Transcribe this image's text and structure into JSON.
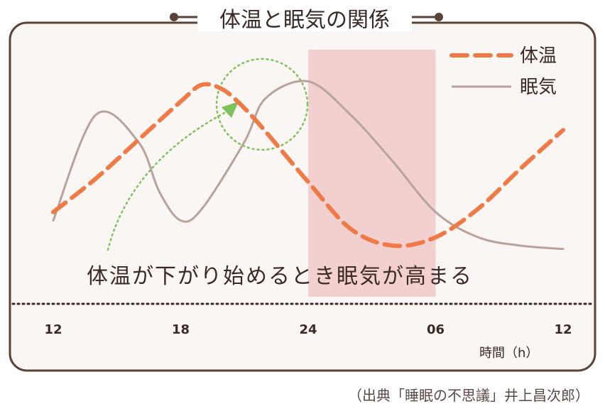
{
  "chart_data": {
    "type": "line",
    "title": "体温と眠気の関係",
    "x": [
      "12",
      "18",
      "24",
      "06",
      "12"
    ],
    "xlabel": "時間（h）",
    "ylabel": "",
    "series": [
      {
        "name": "体温",
        "style": "dashed",
        "color": "#f07a46",
        "points": [
          [
            12,
            0.2
          ],
          [
            14,
            0.4
          ],
          [
            16,
            0.63
          ],
          [
            18,
            0.86
          ],
          [
            19,
            0.96
          ],
          [
            20,
            0.93
          ],
          [
            21,
            0.82
          ],
          [
            22,
            0.68
          ],
          [
            24,
            0.38
          ],
          [
            26,
            0.1
          ],
          [
            28,
            0.0
          ],
          [
            30,
            0.05
          ],
          [
            32,
            0.22
          ],
          [
            34,
            0.46
          ],
          [
            36,
            0.69
          ]
        ]
      },
      {
        "name": "眠気",
        "style": "solid",
        "color": "#b8a39c",
        "points": [
          [
            12,
            0.15
          ],
          [
            14,
            0.78
          ],
          [
            16,
            0.62
          ],
          [
            17,
            0.32
          ],
          [
            18,
            0.15
          ],
          [
            19,
            0.22
          ],
          [
            21,
            0.62
          ],
          [
            22,
            0.88
          ],
          [
            24,
            0.98
          ],
          [
            26,
            0.78
          ],
          [
            28,
            0.5
          ],
          [
            30,
            0.2
          ],
          [
            32,
            0.05
          ],
          [
            34,
            0.0
          ],
          [
            36,
            -0.02
          ]
        ]
      }
    ],
    "highlight_region": {
      "from": 24,
      "to": 30,
      "color": "#f2d0cf"
    },
    "annotation": "体温が下がり始めるとき眠気が高まる",
    "legend": {
      "position": "top-right"
    }
  },
  "source_note": "（出典「睡眠の不思議」井上昌次郎）",
  "colors": {
    "frame": "#5a4238",
    "panel": "#faf6f3",
    "accent_green": "#7cc25a",
    "axis_text": "#3a2a25"
  }
}
